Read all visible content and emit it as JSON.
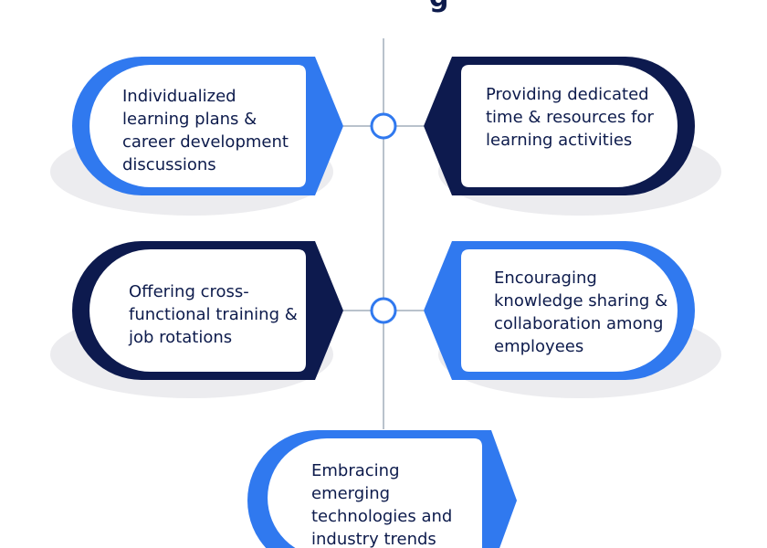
{
  "header": {
    "title_fragment": "g"
  },
  "colors": {
    "blue": "#3079ef",
    "navy": "#0d1a4e",
    "text": "#0d1b4c",
    "line": "#b9c2cc",
    "shadow": "#ececef"
  },
  "items": [
    {
      "label": "Individualized learning plans & career development discussions",
      "color": "blue",
      "side": "left"
    },
    {
      "label": "Providing dedicated time & resources for learning activities",
      "color": "navy",
      "side": "right"
    },
    {
      "label": "Offering cross-functional training & job rotations",
      "color": "navy",
      "side": "left"
    },
    {
      "label": "Encouraging knowledge sharing & collaboration among employees",
      "color": "blue",
      "side": "right"
    },
    {
      "label": "Embracing emerging technologies and industry trends",
      "color": "blue",
      "side": "left"
    }
  ]
}
